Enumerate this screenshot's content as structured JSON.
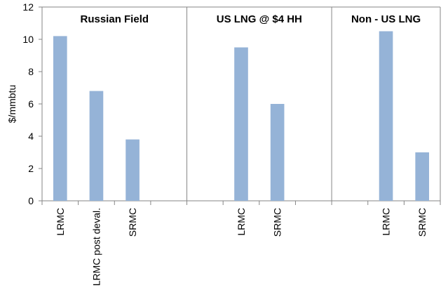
{
  "chart_data": {
    "type": "bar",
    "ylabel": "$/mmbtu",
    "ylim": [
      0,
      12
    ],
    "yticks": [
      0,
      2,
      4,
      6,
      8,
      10,
      12
    ],
    "grid": false,
    "bar_color": "#95B3D7",
    "axis_color": "#868686",
    "groups": [
      {
        "name": "Russian Field",
        "categories": [
          "LRMC",
          "LRMC post deval.",
          "SRMC",
          ""
        ],
        "values": [
          10.2,
          6.8,
          3.8,
          null
        ]
      },
      {
        "name": "US LNG @ $4 HH",
        "categories": [
          "",
          "LRMC",
          "SRMC",
          ""
        ],
        "values": [
          null,
          9.5,
          6.0,
          null
        ]
      },
      {
        "name": "Non - US LNG",
        "categories": [
          "",
          "LRMC",
          "SRMC"
        ],
        "values": [
          null,
          10.5,
          3.0
        ]
      }
    ]
  }
}
